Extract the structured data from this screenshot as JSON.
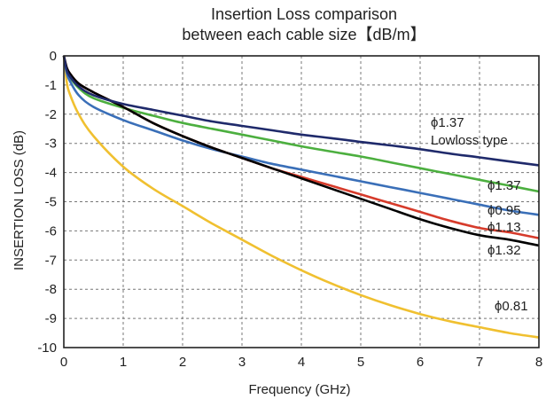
{
  "chart_data": {
    "type": "line",
    "title": [
      "Insertion Loss comparison",
      "between each cable size【dB/m】"
    ],
    "xlabel": "Frequency (GHz)",
    "ylabel": "INSERTION LOSS (dB)",
    "xlim": [
      0,
      8
    ],
    "ylim": [
      -10,
      0
    ],
    "xticks": [
      0,
      1,
      2,
      3,
      4,
      5,
      6,
      7,
      8
    ],
    "yticks": [
      0,
      -1,
      -2,
      -3,
      -4,
      -5,
      -6,
      -7,
      -8,
      -9,
      -10
    ],
    "grid": true,
    "x": [
      0,
      0.05,
      0.1,
      0.25,
      0.5,
      1,
      1.5,
      2,
      2.5,
      3,
      3.5,
      4,
      4.5,
      5,
      5.5,
      6,
      6.5,
      7,
      7.5,
      8
    ],
    "series": [
      {
        "name": "ϕ1.37 Lowloss type",
        "color": "#1f2a6b",
        "values": [
          0,
          -0.5,
          -0.7,
          -1.05,
          -1.35,
          -1.65,
          -1.85,
          -2.05,
          -2.25,
          -2.4,
          -2.55,
          -2.7,
          -2.82,
          -2.95,
          -3.07,
          -3.2,
          -3.35,
          -3.48,
          -3.62,
          -3.75
        ]
      },
      {
        "name": "ϕ1.37",
        "color": "#4caf3f",
        "values": [
          0,
          -0.5,
          -0.72,
          -1.1,
          -1.45,
          -1.78,
          -2.05,
          -2.3,
          -2.5,
          -2.7,
          -2.9,
          -3.1,
          -3.28,
          -3.45,
          -3.65,
          -3.85,
          -4.05,
          -4.25,
          -4.45,
          -4.65
        ]
      },
      {
        "name": "ϕ0.95",
        "color": "#3a6fb8",
        "values": [
          0,
          -0.6,
          -0.85,
          -1.35,
          -1.75,
          -2.2,
          -2.55,
          -2.9,
          -3.2,
          -3.45,
          -3.7,
          -3.9,
          -4.1,
          -4.3,
          -4.5,
          -4.7,
          -4.9,
          -5.1,
          -5.3,
          -5.45
        ]
      },
      {
        "name": "ϕ1.13",
        "color": "#d63b2b",
        "values": [
          0,
          -0.4,
          -0.6,
          -0.95,
          -1.25,
          -1.75,
          -2.3,
          -2.75,
          -3.15,
          -3.5,
          -3.85,
          -4.15,
          -4.45,
          -4.75,
          -5.05,
          -5.35,
          -5.65,
          -5.9,
          -6.05,
          -6.25
        ]
      },
      {
        "name": "ϕ1.32",
        "color": "#000000",
        "values": [
          0,
          -0.4,
          -0.6,
          -0.95,
          -1.25,
          -1.75,
          -2.3,
          -2.75,
          -3.15,
          -3.5,
          -3.85,
          -4.2,
          -4.55,
          -4.9,
          -5.25,
          -5.6,
          -5.9,
          -6.15,
          -6.3,
          -6.5
        ]
      },
      {
        "name": "ϕ0.81",
        "color": "#f0c030",
        "values": [
          0,
          -0.9,
          -1.3,
          -2.0,
          -2.75,
          -3.8,
          -4.55,
          -5.15,
          -5.75,
          -6.3,
          -6.85,
          -7.35,
          -7.8,
          -8.2,
          -8.55,
          -8.85,
          -9.1,
          -9.3,
          -9.5,
          -9.65
        ]
      }
    ],
    "annotations": [
      {
        "lines": [
          "ϕ1.37",
          "Lowloss type"
        ],
        "series": 0
      },
      {
        "lines": [
          "ϕ1.37"
        ],
        "series": 1
      },
      {
        "lines": [
          "ϕ0.95"
        ],
        "series": 2
      },
      {
        "lines": [
          "ϕ1.13"
        ],
        "series": 3
      },
      {
        "lines": [
          "ϕ1.32"
        ],
        "series": 4
      },
      {
        "lines": [
          "ϕ0.81"
        ],
        "series": 5
      }
    ]
  }
}
